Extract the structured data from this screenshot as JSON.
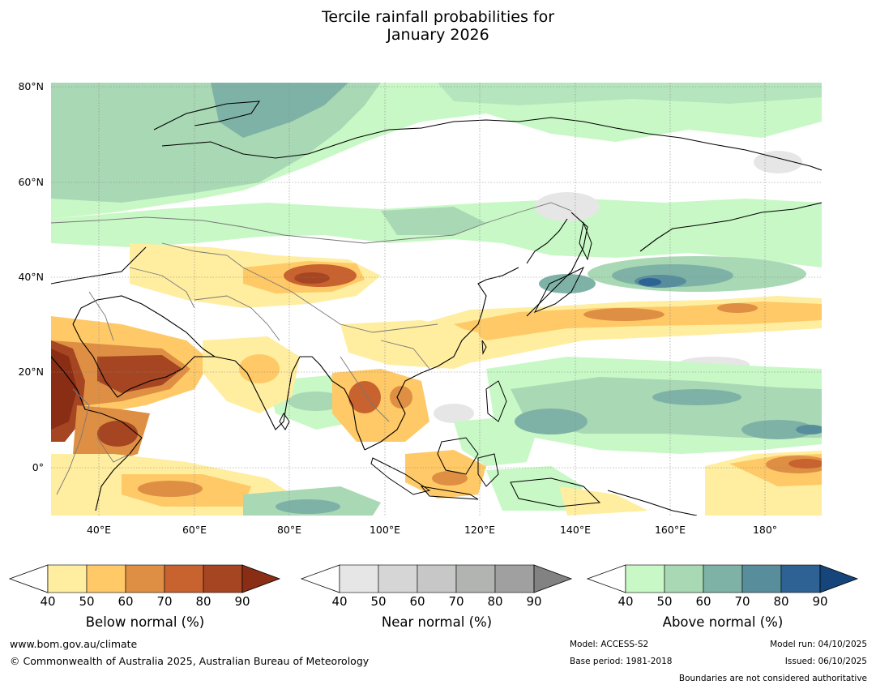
{
  "title": {
    "line1": "Tercile rainfall probabilities for",
    "line2": "January 2026"
  },
  "map": {
    "lat_labels": [
      "80°N",
      "60°N",
      "40°N",
      "20°N",
      "0°"
    ],
    "lon_labels": [
      "40°E",
      "60°E",
      "80°E",
      "100°E",
      "120°E",
      "140°E",
      "160°E",
      "180°"
    ]
  },
  "colorbars": [
    {
      "title": "Below normal (%)",
      "ticks": [
        "40",
        "50",
        "60",
        "70",
        "80",
        "90"
      ],
      "colors": [
        "#ffeda0",
        "#fec966",
        "#de8f43",
        "#c8622f",
        "#a64522",
        "#8a2d15"
      ]
    },
    {
      "title": "Near normal (%)",
      "ticks": [
        "40",
        "50",
        "60",
        "70",
        "80",
        "90"
      ],
      "colors": [
        "#e6e6e6",
        "#d6d6d6",
        "#c7c7c7",
        "#b2b4b2",
        "#a0a0a0",
        "#828282"
      ]
    },
    {
      "title": "Above normal (%)",
      "ticks": [
        "40",
        "50",
        "60",
        "70",
        "80",
        "90"
      ],
      "colors": [
        "#c8f8c6",
        "#a9d8b5",
        "#7fb2a6",
        "#588d9c",
        "#2e6194",
        "#15457a"
      ]
    }
  ],
  "footer": {
    "website": "www.bom.gov.au/climate",
    "copyright": "© Commonwealth of Australia 2025, Australian Bureau of Meteorology",
    "model": "Model: ACCESS-S2",
    "base_period": "Base period: 1981-2018",
    "model_run": "Model run: 04/10/2025",
    "issued": "Issued: 06/10/2025",
    "disclaimer": "Boundaries are not considered authoritative"
  }
}
